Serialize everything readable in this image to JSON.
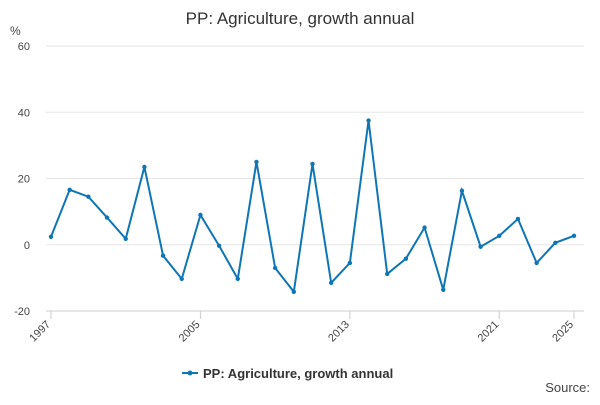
{
  "chart_data": {
    "type": "line",
    "title": "PP: Agriculture, growth annual",
    "y_label": "%",
    "source": "Source:",
    "x": [
      1997,
      1998,
      1999,
      2000,
      2001,
      2002,
      2003,
      2004,
      2005,
      2006,
      2007,
      2008,
      2009,
      2010,
      2011,
      2012,
      2013,
      2014,
      2015,
      2016,
      2017,
      2018,
      2019,
      2020,
      2021,
      2022,
      2023,
      2024,
      2025
    ],
    "series": [
      {
        "name": "PP: Agriculture, growth annual",
        "color": "#0e76b4",
        "values": [
          2.4,
          16.6,
          14.5,
          8.2,
          1.8,
          23.5,
          -3.3,
          -10.3,
          9,
          -0.3,
          -10.3,
          25,
          -7,
          -14.2,
          24.4,
          -11.5,
          -5.5,
          37.5,
          -8.8,
          -4.2,
          5.2,
          -13.6,
          16.3,
          -0.6,
          2.7,
          7.8,
          -5.5,
          0.6,
          2.7
        ]
      }
    ],
    "xlim": [
      1997,
      2025
    ],
    "xticks": [
      1997,
      2005,
      2013,
      2021,
      2025
    ],
    "ylim": [
      -20,
      60
    ],
    "yticks": [
      -20,
      0,
      20,
      40,
      60
    ],
    "grid": true
  }
}
